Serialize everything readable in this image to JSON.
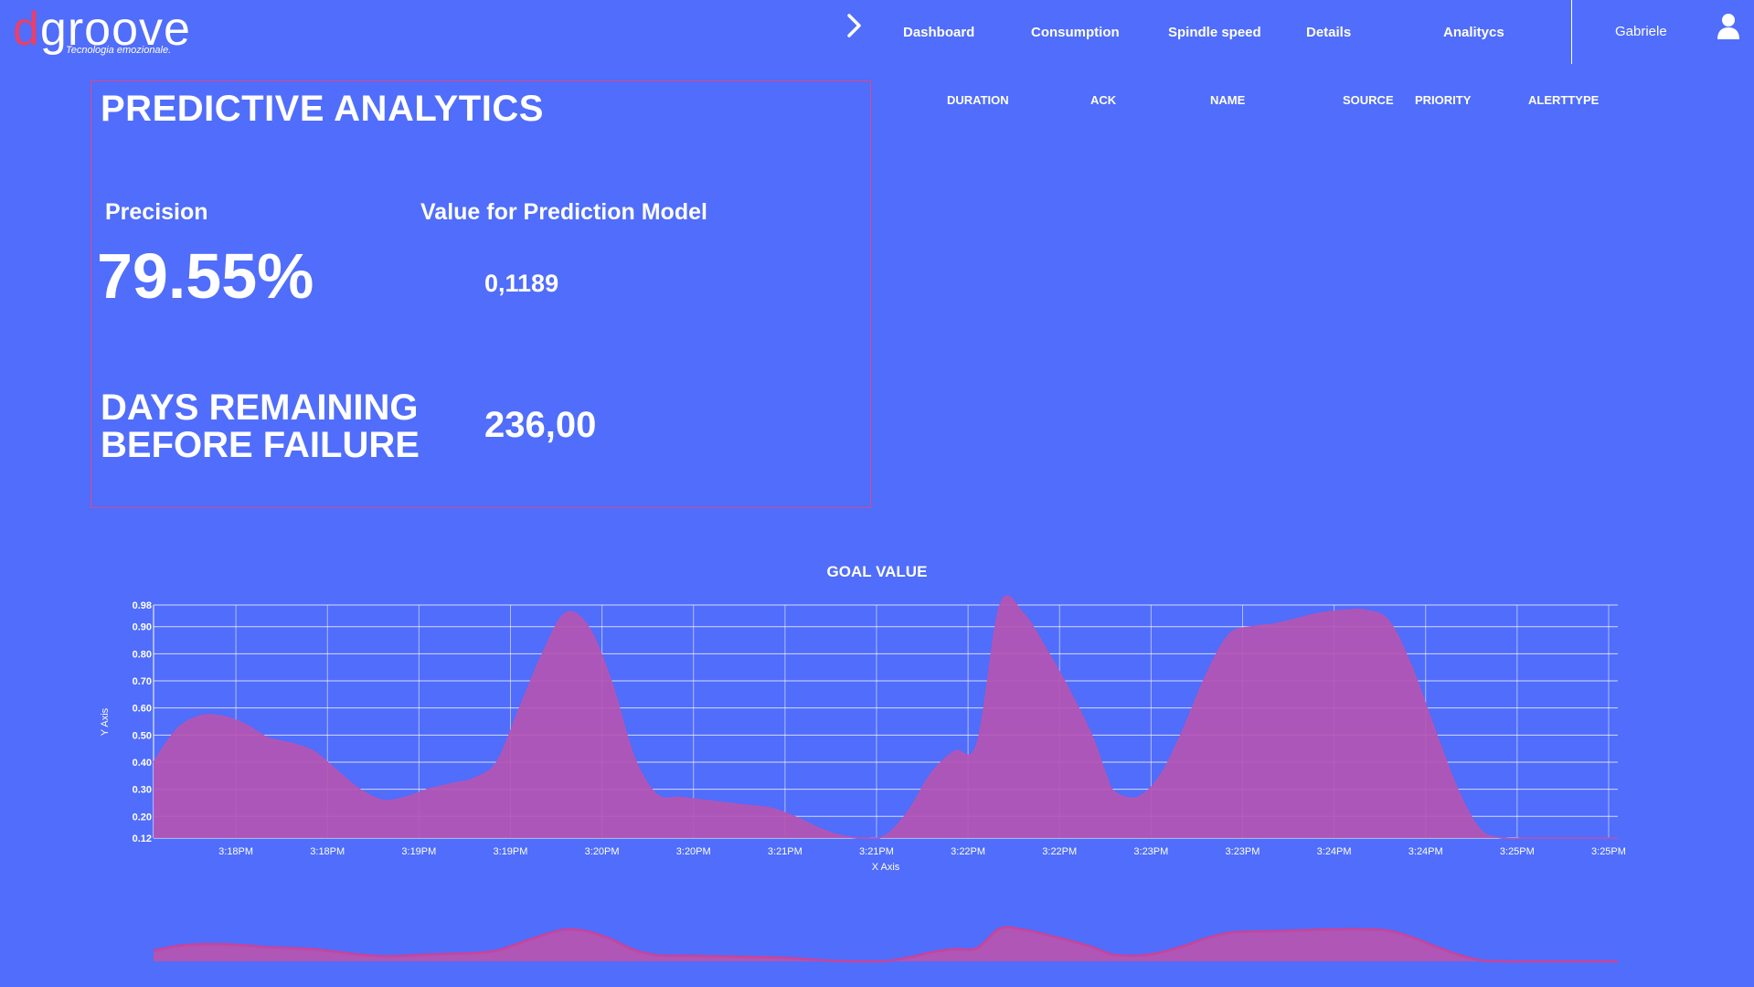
{
  "brand": {
    "name_first": "d",
    "name_rest": "groove",
    "tagline": "Tecnologia emozionale."
  },
  "nav": {
    "items": [
      {
        "label": "Dashboard"
      },
      {
        "label": "Consumption"
      },
      {
        "label": "Spindle speed"
      },
      {
        "label": "Details"
      },
      {
        "label": "Analitycs"
      }
    ],
    "user_name": "Gabriele"
  },
  "panel": {
    "title": "PREDICTIVE ANALYTICS",
    "precision_label": "Precision",
    "precision_value": "79.55%",
    "model_label": "Value for Prediction Model",
    "model_value": "0,1189",
    "days_label_line1": "DAYS REMAINING",
    "days_label_line2": "BEFORE FAILURE",
    "days_value": "236,00"
  },
  "alerts_table": {
    "columns": [
      "DURATION",
      "ACK",
      "NAME",
      "SOURCE",
      "PRIORITY",
      "ALERTTYPE"
    ],
    "rows": []
  },
  "colors": {
    "background": "#506dfb",
    "area_fill": "#b455b3",
    "panel_border": "#d9498b",
    "logo_accent": "#e8406a"
  },
  "icons": {
    "arrow": "chevron-right-icon",
    "user": "user-icon"
  },
  "chart_data": {
    "type": "area",
    "title": "GOAL VALUE",
    "xlabel": "X Axis",
    "ylabel": "Y Axis",
    "ylim": [
      0.12,
      0.98
    ],
    "yticks": [
      0.12,
      0.2,
      0.3,
      0.4,
      0.5,
      0.6,
      0.7,
      0.8,
      0.9,
      0.98
    ],
    "x_tick_labels": [
      "3:18PM",
      "3:18PM",
      "3:19PM",
      "3:19PM",
      "3:20PM",
      "3:20PM",
      "3:21PM",
      "3:21PM",
      "3:22PM",
      "3:22PM",
      "3:23PM",
      "3:23PM",
      "3:24PM",
      "3:24PM",
      "3:25PM",
      "3:25PM"
    ],
    "grid": true,
    "series": [
      {
        "x": [
          0,
          0.25,
          0.5,
          0.75,
          1,
          1.25,
          1.5,
          1.75,
          2,
          2.25,
          2.5,
          2.75,
          3,
          3.25,
          3.5,
          3.75,
          4,
          4.25,
          4.5,
          4.75,
          5,
          5.25,
          5.5,
          5.75,
          6,
          6.25,
          6.5,
          6.75,
          7,
          7.25,
          7.5,
          7.75,
          8,
          8.25,
          8.5,
          8.75,
          9,
          9.25,
          9.5,
          9.75,
          10,
          10.25,
          10.4,
          10.5,
          10.75,
          11,
          11.25,
          11.5,
          11.75,
          12,
          12.25,
          12.5,
          12.75,
          13,
          13.25,
          13.5,
          13.75,
          14,
          14.25,
          14.5,
          14.75,
          15,
          15.25,
          15.5,
          15.75,
          16
        ],
        "values": [
          0.4,
          0.52,
          0.57,
          0.57,
          0.54,
          0.49,
          0.47,
          0.44,
          0.37,
          0.3,
          0.26,
          0.27,
          0.3,
          0.32,
          0.34,
          0.4,
          0.6,
          0.8,
          0.95,
          0.9,
          0.7,
          0.42,
          0.28,
          0.27,
          0.26,
          0.25,
          0.24,
          0.23,
          0.2,
          0.16,
          0.13,
          0.12,
          0.13,
          0.22,
          0.36,
          0.44,
          0.47,
          0.98,
          0.95,
          0.82,
          0.67,
          0.5,
          0.36,
          0.29,
          0.27,
          0.35,
          0.52,
          0.72,
          0.87,
          0.9,
          0.91,
          0.93,
          0.95,
          0.96,
          0.96,
          0.92,
          0.75,
          0.52,
          0.3,
          0.15,
          0.12,
          0.12,
          0.12,
          0.12,
          0.12,
          0.12
        ]
      }
    ]
  }
}
